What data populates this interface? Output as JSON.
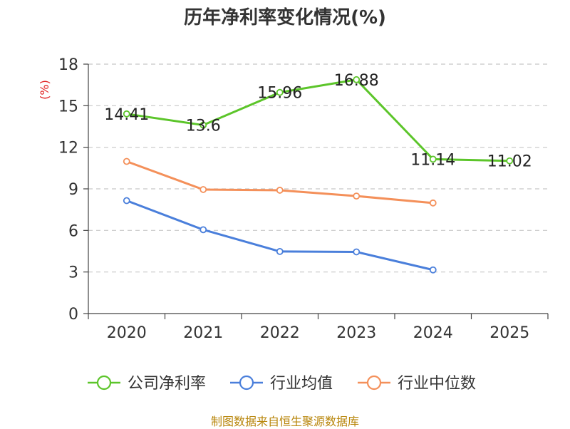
{
  "title": "历年净利率变化情况(%)",
  "source": "制图数据来自恒生聚源数据库",
  "chart_data": {
    "type": "line",
    "title": "历年净利率变化情况(%)",
    "ylabel": "(%)",
    "xlabel": "",
    "categories": [
      "2020",
      "2021",
      "2022",
      "2023",
      "2024",
      "2025"
    ],
    "ylim": [
      0,
      18
    ],
    "yticks": [
      0,
      3,
      6,
      9,
      12,
      15,
      18
    ],
    "grid": true,
    "legend_position": "bottom",
    "series": [
      {
        "name": "公司净利率",
        "color": "#5cc52a",
        "values": [
          14.41,
          13.6,
          15.96,
          16.88,
          11.14,
          11.02
        ],
        "show_labels": true
      },
      {
        "name": "行业均值",
        "color": "#4a7fdb",
        "values": [
          8.15,
          6.05,
          4.48,
          4.45,
          3.15,
          null
        ],
        "show_labels": false
      },
      {
        "name": "行业中位数",
        "color": "#f4905a",
        "values": [
          10.98,
          8.95,
          8.9,
          8.48,
          7.98,
          null
        ],
        "show_labels": false
      }
    ]
  }
}
